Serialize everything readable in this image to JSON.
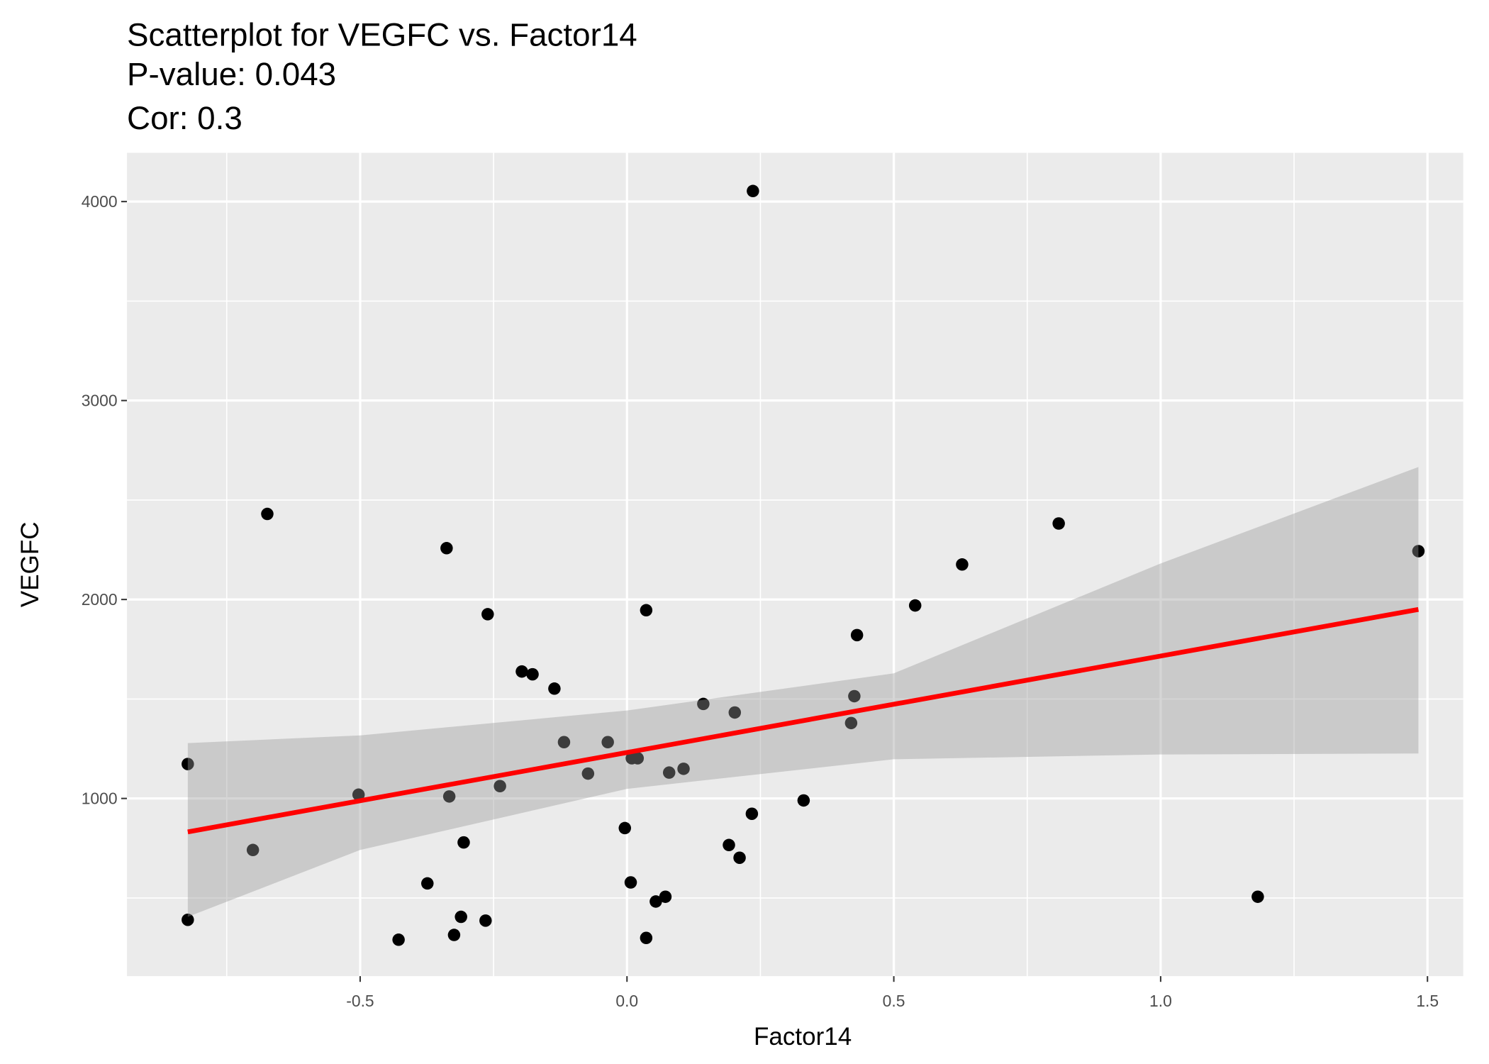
{
  "chart_data": {
    "type": "scatter",
    "title": "Scatterplot for VEGFC vs. Factor14",
    "subtitle": [
      "P-value: 0.043",
      "Cor: 0.3"
    ],
    "x_label": "Factor14",
    "y_label": "VEGFC",
    "xlim": [
      -0.937,
      1.567
    ],
    "ylim": [
      107,
      4245
    ],
    "xticks": [
      -0.5,
      {
        "value": 0,
        "label": "0.0"
      },
      0.5,
      {
        "value": 1,
        "label": "1.0"
      },
      1.5
    ],
    "yticks": [
      1000,
      2000,
      3000,
      4000
    ],
    "minor_xticks": [
      -0.75,
      -0.25,
      0.25,
      0.75,
      1.25
    ],
    "minor_yticks": [
      500,
      1500,
      2500,
      3500
    ],
    "grid": true,
    "color": "#000000",
    "x": [
      0.236,
      -0.674,
      -0.338,
      0.809,
      1.483,
      0.628,
      -0.261,
      0.036,
      0.54,
      0.431,
      -0.197,
      -0.177,
      -0.136,
      0.143,
      0.426,
      0.202,
      0.42,
      -0.823,
      -0.118,
      -0.036,
      0.009,
      0.02,
      -0.073,
      0.079,
      0.106,
      -0.238,
      -0.503,
      -0.333,
      0.331,
      0.234,
      -0.004,
      -0.306,
      0.191,
      -0.701,
      0.211,
      -0.374,
      0.007,
      0.072,
      0.054,
      1.182,
      -0.823,
      -0.311,
      -0.265,
      -0.324,
      -0.428,
      0.036
    ],
    "values": [
      4053,
      2430,
      2258,
      2382,
      2243,
      2176,
      1926,
      1946,
      1970,
      1821,
      1638,
      1624,
      1552,
      1475,
      1514,
      1432,
      1379,
      1173,
      1283,
      1283,
      1202,
      1202,
      1125,
      1130,
      1149,
      1062,
      1019,
      1010,
      990,
      923,
      851,
      779,
      766,
      741,
      702,
      573,
      578,
      506,
      482,
      506,
      390,
      405,
      386,
      314,
      290,
      299
    ],
    "fit": {
      "color": "#ff0000",
      "x": [
        -0.823,
        1.483
      ],
      "values": [
        832,
        1950
      ]
    },
    "band": {
      "color": "#cccccc",
      "x": [
        -0.823,
        -0.5,
        0,
        0.5,
        1.0,
        1.483
      ],
      "upper": [
        1278,
        1317,
        1442,
        1629,
        2181,
        2666
      ],
      "lower": [
        405,
        741,
        1048,
        1197,
        1221,
        1226
      ]
    }
  }
}
